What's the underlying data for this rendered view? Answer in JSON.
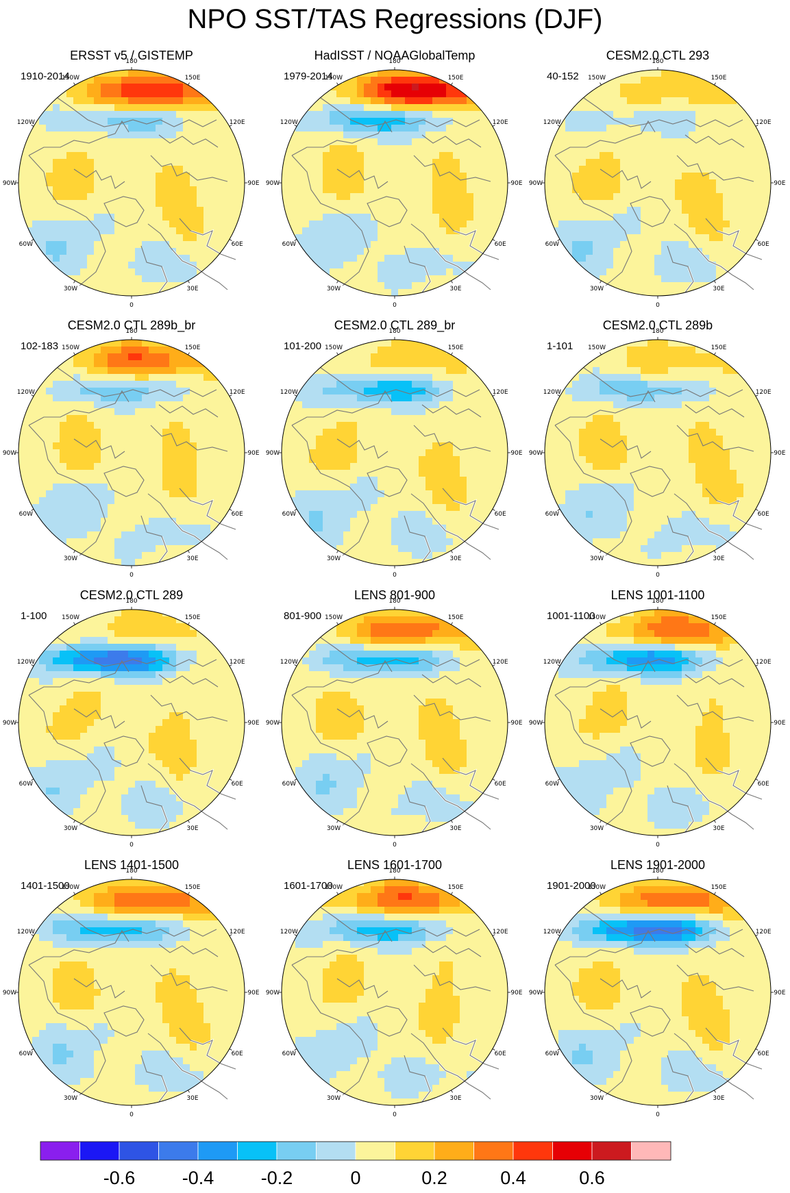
{
  "title": "NPO SST/TAS Regressions (DJF)",
  "longitude_labels": [
    "180",
    "150E",
    "120E",
    "90E",
    "60E",
    "30E",
    "0",
    "30W",
    "60W",
    "90W",
    "120W",
    "150W"
  ],
  "chart_data": {
    "type": "heatmap",
    "projection": "north polar stereographic",
    "season": "DJF",
    "variable": "SST/TAS regression onto NPO index",
    "colorbar": {
      "levels": [
        -0.7,
        -0.6,
        -0.5,
        -0.4,
        -0.3,
        -0.2,
        -0.1,
        0,
        0.1,
        0.2,
        0.3,
        0.4,
        0.5,
        0.6,
        0.7
      ],
      "colors": [
        "#8A1FEE",
        "#1B17F5",
        "#2E54E5",
        "#3C7BEB",
        "#1E9AF5",
        "#08C1F7",
        "#78CEF2",
        "#B3DEF2",
        "#FCF49B",
        "#FFD435",
        "#FFAD19",
        "#FF7716",
        "#FF370C",
        "#E60005",
        "#CC1A1F",
        "#FFB8B8"
      ],
      "tick_labels": [
        "-0.6",
        "-0.4",
        "-0.2",
        "0",
        "0.2",
        "0.4",
        "0.6"
      ]
    },
    "panels": [
      {
        "title": "ERSST v5 / GISTEMP",
        "period": "1910-2014",
        "pacific_max": 0.4,
        "pacific_min": -0.2
      },
      {
        "title": "HadISST / NOAAGlobalTemp",
        "period": "1979-2014",
        "pacific_max": 0.5,
        "pacific_min": -0.3
      },
      {
        "title": "CESM2.0 CTL 293",
        "period": "40-152",
        "pacific_max": 0.1,
        "pacific_min": -0.1
      },
      {
        "title": "CESM2.0 CTL 289b_br",
        "period": "102-183",
        "pacific_max": 0.3,
        "pacific_min": -0.2
      },
      {
        "title": "CESM2.0 CTL 289_br",
        "period": "101-200",
        "pacific_max": 0.1,
        "pacific_min": -0.3
      },
      {
        "title": "CESM2.0 CTL 289b",
        "period": "1-101",
        "pacific_max": 0.1,
        "pacific_min": -0.2
      },
      {
        "title": "CESM2.0 CTL 289",
        "period": "1-100",
        "pacific_max": 0.1,
        "pacific_min": -0.5
      },
      {
        "title": "LENS 801-900",
        "period": "801-900",
        "pacific_max": 0.3,
        "pacific_min": -0.3
      },
      {
        "title": "LENS 1001-1100",
        "period": "1001-1100",
        "pacific_max": 0.3,
        "pacific_min": -0.4
      },
      {
        "title": "LENS 1401-1500",
        "period": "1401-1500",
        "pacific_max": 0.3,
        "pacific_min": -0.3
      },
      {
        "title": "LENS 1601-1700",
        "period": "1601-1700",
        "pacific_max": 0.3,
        "pacific_min": -0.3
      },
      {
        "title": "LENS 1901-2000",
        "period": "1901-2000",
        "pacific_max": 0.3,
        "pacific_min": -0.5
      }
    ]
  }
}
